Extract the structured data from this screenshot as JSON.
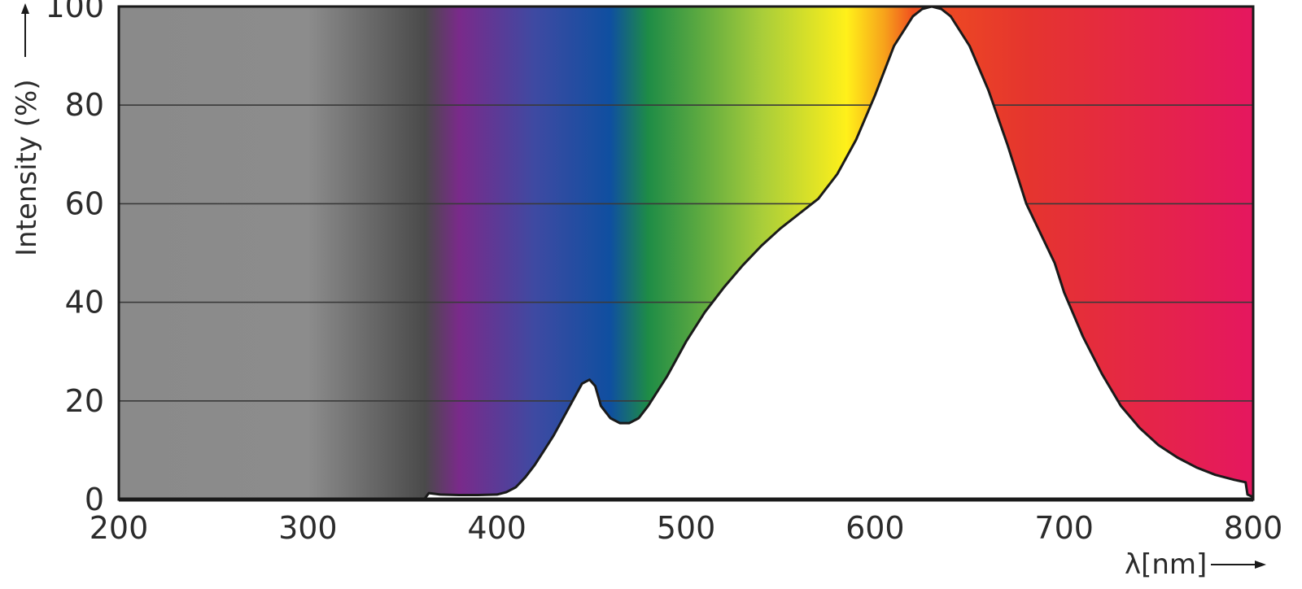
{
  "chart_data": {
    "type": "area",
    "title": "",
    "xlabel": "λ[nm]",
    "ylabel": "Intensity (%)",
    "xlim": [
      200,
      800
    ],
    "ylim": [
      0,
      100
    ],
    "x_ticks": [
      "200",
      "300",
      "400",
      "500",
      "600",
      "700",
      "800"
    ],
    "y_ticks": [
      "0",
      "20",
      "40",
      "60",
      "80",
      "100"
    ],
    "grid": true,
    "legend": "none",
    "background": "visible spectrum gradient",
    "spectrum_colors": [
      {
        "nm": 200,
        "color": "#8a8a8a"
      },
      {
        "nm": 300,
        "color": "#8c8c8c"
      },
      {
        "nm": 362,
        "color": "#4a4a4a"
      },
      {
        "nm": 380,
        "color": "#7a2a8a"
      },
      {
        "nm": 420,
        "color": "#3e4aa2"
      },
      {
        "nm": 460,
        "color": "#0f4fa0"
      },
      {
        "nm": 480,
        "color": "#1e8c46"
      },
      {
        "nm": 540,
        "color": "#a8cd3a"
      },
      {
        "nm": 585,
        "color": "#fff01a"
      },
      {
        "nm": 605,
        "color": "#f7a21b"
      },
      {
        "nm": 620,
        "color": "#f0501f"
      },
      {
        "nm": 680,
        "color": "#e5352e"
      },
      {
        "nm": 800,
        "color": "#e5175f"
      }
    ],
    "series": [
      {
        "x": [
          362,
          364,
          370,
          380,
          390,
          400,
          405,
          410,
          415,
          420,
          425,
          430,
          435,
          440,
          445,
          449,
          452,
          455,
          460,
          465,
          470,
          475,
          480,
          490,
          500,
          510,
          520,
          530,
          540,
          550,
          560,
          570,
          580,
          590,
          600,
          610,
          620,
          625,
          630,
          635,
          640,
          650,
          660,
          670,
          680,
          690,
          695,
          700,
          710,
          720,
          730,
          740,
          750,
          760,
          770,
          780,
          790,
          796,
          797,
          800
        ],
        "y": [
          0.3,
          1.3,
          1.0,
          0.9,
          0.9,
          1.0,
          1.5,
          2.5,
          4.5,
          7.0,
          10.0,
          13.0,
          16.5,
          20.0,
          23.5,
          24.3,
          23.0,
          19.0,
          16.5,
          15.5,
          15.5,
          16.5,
          19.0,
          25.0,
          32.0,
          38.0,
          43.0,
          47.5,
          51.5,
          55.0,
          58.0,
          61.0,
          66.0,
          73.0,
          82.0,
          92.0,
          98.0,
          99.5,
          100,
          99.5,
          98.0,
          92.0,
          83.0,
          72.0,
          60.0,
          52.0,
          48.0,
          42.0,
          33.0,
          25.5,
          19.0,
          14.5,
          11.0,
          8.5,
          6.5,
          5.0,
          4.0,
          3.5,
          1.0,
          0.5
        ]
      }
    ]
  }
}
